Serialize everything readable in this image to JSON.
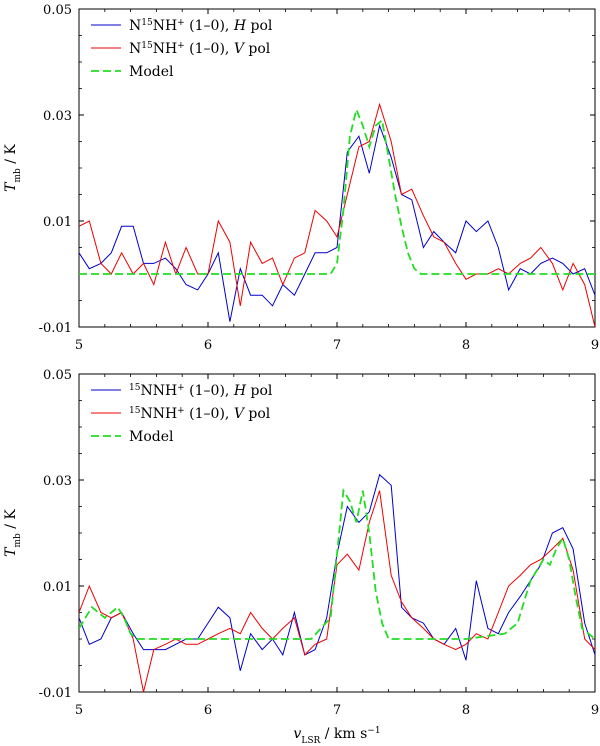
{
  "chart_data": [
    {
      "type": "line",
      "panel": "top",
      "xlabel": "",
      "ylabel": "T_mb / K",
      "xlim": [
        5,
        9
      ],
      "ylim": [
        -0.01,
        0.05
      ],
      "xticks": [
        "5",
        "6",
        "7",
        "8",
        "9"
      ],
      "yticks": [
        "-0.01",
        "0.01",
        "0.03",
        "0.05"
      ],
      "legend_position": "top-left",
      "series": [
        {
          "name": "N15NH+ (1-0), H pol",
          "legend_parts": [
            "N",
            "15",
            "NH",
            "+",
            " (1–0), ",
            "H",
            " pol"
          ],
          "color": "#0000cc",
          "dash": "",
          "x": [
            5.0,
            5.08,
            5.17,
            5.25,
            5.33,
            5.42,
            5.5,
            5.58,
            5.67,
            5.75,
            5.83,
            5.92,
            6.0,
            6.08,
            6.17,
            6.25,
            6.33,
            6.42,
            6.5,
            6.58,
            6.67,
            6.75,
            6.83,
            6.92,
            7.0,
            7.08,
            7.17,
            7.25,
            7.33,
            7.42,
            7.5,
            7.58,
            7.67,
            7.75,
            7.83,
            7.92,
            8.0,
            8.08,
            8.17,
            8.25,
            8.33,
            8.42,
            8.5,
            8.58,
            8.67,
            8.75,
            8.83,
            8.92,
            9.0
          ],
          "values": [
            0.004,
            0.001,
            0.002,
            0.004,
            0.009,
            0.009,
            0.002,
            0.002,
            0.003,
            0.001,
            -0.002,
            -0.003,
            0.0,
            0.004,
            -0.009,
            0.001,
            -0.004,
            -0.004,
            -0.006,
            -0.002,
            -0.004,
            0.0,
            0.004,
            0.004,
            0.005,
            0.023,
            0.026,
            0.019,
            0.028,
            0.022,
            0.015,
            0.014,
            0.005,
            0.008,
            0.006,
            0.004,
            0.01,
            0.008,
            0.01,
            0.005,
            -0.003,
            0.001,
            0.0,
            0.002,
            0.003,
            0.002,
            0.0,
            0.001,
            -0.004
          ]
        },
        {
          "name": "N15NH+ (1-0), V pol",
          "legend_parts": [
            "N",
            "15",
            "NH",
            "+",
            " (1–0), ",
            "V",
            " pol"
          ],
          "color": "#ee0000",
          "dash": "",
          "x": [
            5.0,
            5.08,
            5.17,
            5.25,
            5.33,
            5.42,
            5.5,
            5.58,
            5.67,
            5.75,
            5.83,
            5.92,
            6.0,
            6.08,
            6.17,
            6.25,
            6.33,
            6.42,
            6.5,
            6.58,
            6.67,
            6.75,
            6.83,
            6.92,
            7.0,
            7.08,
            7.17,
            7.25,
            7.33,
            7.42,
            7.5,
            7.58,
            7.67,
            7.75,
            7.83,
            7.92,
            8.0,
            8.08,
            8.17,
            8.25,
            8.33,
            8.42,
            8.5,
            8.58,
            8.67,
            8.75,
            8.83,
            8.92,
            9.0
          ],
          "values": [
            0.009,
            0.01,
            0.002,
            0.0,
            0.004,
            0.0,
            0.002,
            -0.002,
            0.006,
            0.0,
            0.005,
            0.0,
            0.0,
            0.01,
            0.006,
            -0.006,
            0.006,
            0.002,
            0.003,
            -0.002,
            0.003,
            0.004,
            0.012,
            0.01,
            0.007,
            0.015,
            0.024,
            0.025,
            0.032,
            0.025,
            0.015,
            0.016,
            0.011,
            0.007,
            0.006,
            0.002,
            -0.001,
            0.0,
            0.0,
            0.001,
            0.0,
            0.002,
            0.003,
            0.005,
            0.002,
            -0.003,
            0.002,
            -0.002,
            -0.01
          ]
        },
        {
          "name": "Model",
          "legend_parts": [
            "Model"
          ],
          "color": "#22dd22",
          "dash": "8,4",
          "x": [
            5.0,
            5.5,
            6.0,
            6.5,
            6.95,
            7.0,
            7.05,
            7.1,
            7.15,
            7.2,
            7.25,
            7.3,
            7.35,
            7.4,
            7.45,
            7.5,
            7.55,
            7.6,
            7.65,
            7.7,
            7.8,
            8.0,
            8.5,
            9.0
          ],
          "values": [
            0.0,
            0.0,
            0.0,
            0.0,
            0.0,
            0.002,
            0.012,
            0.026,
            0.031,
            0.028,
            0.024,
            0.028,
            0.029,
            0.022,
            0.015,
            0.009,
            0.004,
            0.001,
            0.0,
            0.0,
            0.0,
            0.0,
            0.0,
            0.0
          ]
        }
      ]
    },
    {
      "type": "line",
      "panel": "bottom",
      "xlabel": "v_LSR / km s^-1",
      "xlabel_parts": [
        "v",
        "LSR",
        " / km s",
        "−1"
      ],
      "ylabel": "T_mb / K",
      "ylabel_parts": [
        "T",
        "mb",
        " / K"
      ],
      "xlim": [
        5,
        9
      ],
      "ylim": [
        -0.01,
        0.05
      ],
      "xticks": [
        "5",
        "6",
        "7",
        "8",
        "9"
      ],
      "yticks": [
        "-0.01",
        "0.01",
        "0.03",
        "0.05"
      ],
      "legend_position": "top-left",
      "series": [
        {
          "name": "15NNH+ (1-0), H pol",
          "legend_parts": [
            "",
            "15",
            "NNH",
            "+",
            " (1–0), ",
            "H",
            " pol"
          ],
          "color": "#0000cc",
          "dash": "",
          "x": [
            5.0,
            5.08,
            5.17,
            5.25,
            5.33,
            5.42,
            5.5,
            5.58,
            5.67,
            5.75,
            5.83,
            5.92,
            6.0,
            6.08,
            6.17,
            6.25,
            6.33,
            6.42,
            6.5,
            6.58,
            6.67,
            6.75,
            6.83,
            6.92,
            7.0,
            7.08,
            7.17,
            7.25,
            7.33,
            7.42,
            7.5,
            7.58,
            7.67,
            7.75,
            7.83,
            7.92,
            8.0,
            8.08,
            8.17,
            8.25,
            8.33,
            8.42,
            8.5,
            8.58,
            8.67,
            8.75,
            8.83,
            8.92,
            9.0
          ],
          "values": [
            0.004,
            -0.001,
            0.0,
            0.004,
            0.005,
            0.001,
            -0.002,
            -0.002,
            -0.002,
            -0.001,
            0.0,
            0.0,
            0.003,
            0.006,
            0.004,
            -0.006,
            0.001,
            -0.002,
            0.0,
            -0.003,
            0.005,
            -0.003,
            -0.002,
            0.004,
            0.016,
            0.025,
            0.022,
            0.024,
            0.031,
            0.029,
            0.006,
            0.004,
            0.003,
            0.0,
            -0.001,
            0.002,
            -0.004,
            0.011,
            0.002,
            0.001,
            0.005,
            0.008,
            0.011,
            0.014,
            0.02,
            0.021,
            0.017,
            0.003,
            -0.003
          ]
        },
        {
          "name": "15NNH+ (1-0), V pol",
          "legend_parts": [
            "",
            "15",
            "NNH",
            "+",
            " (1–0), ",
            "V",
            " pol"
          ],
          "color": "#ee0000",
          "dash": "",
          "x": [
            5.0,
            5.08,
            5.17,
            5.25,
            5.33,
            5.42,
            5.5,
            5.58,
            5.67,
            5.75,
            5.83,
            5.92,
            6.0,
            6.08,
            6.17,
            6.25,
            6.33,
            6.42,
            6.5,
            6.58,
            6.67,
            6.75,
            6.83,
            6.92,
            7.0,
            7.08,
            7.17,
            7.25,
            7.33,
            7.42,
            7.5,
            7.58,
            7.67,
            7.75,
            7.83,
            7.92,
            8.0,
            8.08,
            8.17,
            8.25,
            8.33,
            8.42,
            8.5,
            8.58,
            8.67,
            8.75,
            8.83,
            8.92,
            9.0
          ],
          "values": [
            0.005,
            0.01,
            0.005,
            0.004,
            0.005,
            0.0,
            -0.01,
            -0.002,
            -0.001,
            0.0,
            -0.001,
            -0.001,
            0.0,
            0.001,
            0.002,
            0.001,
            0.005,
            0.002,
            0.0,
            0.002,
            0.004,
            -0.003,
            -0.001,
            0.0,
            0.014,
            0.016,
            0.013,
            0.022,
            0.028,
            0.012,
            0.007,
            0.004,
            0.002,
            0.0,
            -0.001,
            -0.002,
            -0.001,
            0.001,
            0.0,
            0.005,
            0.01,
            0.012,
            0.014,
            0.015,
            0.017,
            0.019,
            0.013,
            0.0,
            -0.002
          ]
        },
        {
          "name": "Model",
          "legend_parts": [
            "Model"
          ],
          "color": "#22dd22",
          "dash": "8,4",
          "x": [
            5.0,
            5.05,
            5.1,
            5.15,
            5.2,
            5.25,
            5.3,
            5.35,
            5.4,
            5.45,
            5.5,
            5.6,
            5.8,
            6.0,
            6.5,
            6.8,
            6.95,
            7.0,
            7.05,
            7.1,
            7.15,
            7.2,
            7.25,
            7.3,
            7.35,
            7.4,
            7.45,
            7.5,
            7.55,
            7.6,
            7.7,
            8.0,
            8.3,
            8.4,
            8.45,
            8.5,
            8.55,
            8.6,
            8.65,
            8.7,
            8.75,
            8.8,
            8.85,
            8.9,
            9.0
          ],
          "values": [
            0.002,
            0.004,
            0.006,
            0.005,
            0.004,
            0.005,
            0.006,
            0.004,
            0.001,
            0.0,
            0.0,
            0.0,
            0.0,
            0.0,
            0.0,
            0.0,
            0.004,
            0.016,
            0.028,
            0.026,
            0.022,
            0.028,
            0.02,
            0.009,
            0.003,
            0.0,
            0.0,
            0.0,
            0.0,
            0.0,
            0.0,
            0.0,
            0.001,
            0.003,
            0.007,
            0.011,
            0.013,
            0.015,
            0.014,
            0.017,
            0.019,
            0.015,
            0.008,
            0.002,
            0.0
          ]
        }
      ]
    }
  ]
}
